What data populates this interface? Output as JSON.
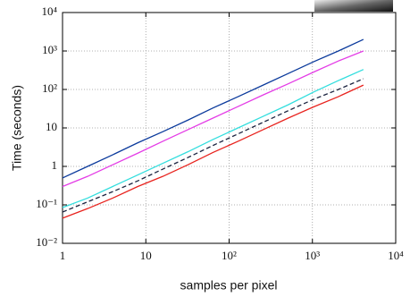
{
  "chart_data": {
    "type": "line",
    "x_label": "samples per pixel",
    "y_label": "Time (seconds)",
    "log_x": true,
    "log_y": true,
    "grid": true,
    "x": [
      1,
      2,
      4,
      8,
      16,
      32,
      64,
      128,
      256,
      512,
      1024,
      2048,
      4096
    ],
    "xlim": [
      1,
      10000
    ],
    "xticks": [
      1,
      10,
      {
        "value": 100,
        "label": "10²"
      },
      {
        "value": 1000,
        "label": "10³"
      },
      {
        "value": 10000,
        "label": "10⁴"
      }
    ],
    "ylim": [
      0.01,
      10000
    ],
    "yticks": [
      {
        "value": 0.01,
        "label": "10⁻²"
      },
      {
        "value": 0.1,
        "label": "10⁻¹"
      },
      1,
      10,
      {
        "value": 100,
        "label": "10²"
      },
      {
        "value": 1000,
        "label": "10³"
      },
      {
        "value": 10000,
        "label": "10⁴"
      }
    ],
    "series": [
      {
        "color": "#0b3a9c",
        "linestyle": "solid",
        "values": [
          0.5,
          1,
          2,
          4.1,
          8,
          16,
          33,
          65,
          130,
          260,
          520,
          1000,
          2000
        ]
      },
      {
        "color": "#e43ce6",
        "linestyle": "solid",
        "values": [
          0.3,
          0.55,
          1.1,
          2.2,
          4.5,
          9,
          18,
          36,
          72,
          140,
          280,
          550,
          1000
        ]
      },
      {
        "color": "#33dede",
        "linestyle": "solid",
        "values": [
          0.085,
          0.15,
          0.3,
          0.6,
          1.2,
          2.4,
          5,
          10,
          20,
          40,
          85,
          170,
          330
        ]
      },
      {
        "color": "#1c2440",
        "linestyle": "dashed",
        "values": [
          0.065,
          0.12,
          0.22,
          0.42,
          0.85,
          1.7,
          3.5,
          7,
          14,
          28,
          55,
          100,
          190
        ]
      },
      {
        "color": "#e8231e",
        "linestyle": "solid",
        "values": [
          0.045,
          0.08,
          0.15,
          0.3,
          0.55,
          1.1,
          2.3,
          4.5,
          9,
          18,
          35,
          65,
          130
        ]
      }
    ]
  }
}
